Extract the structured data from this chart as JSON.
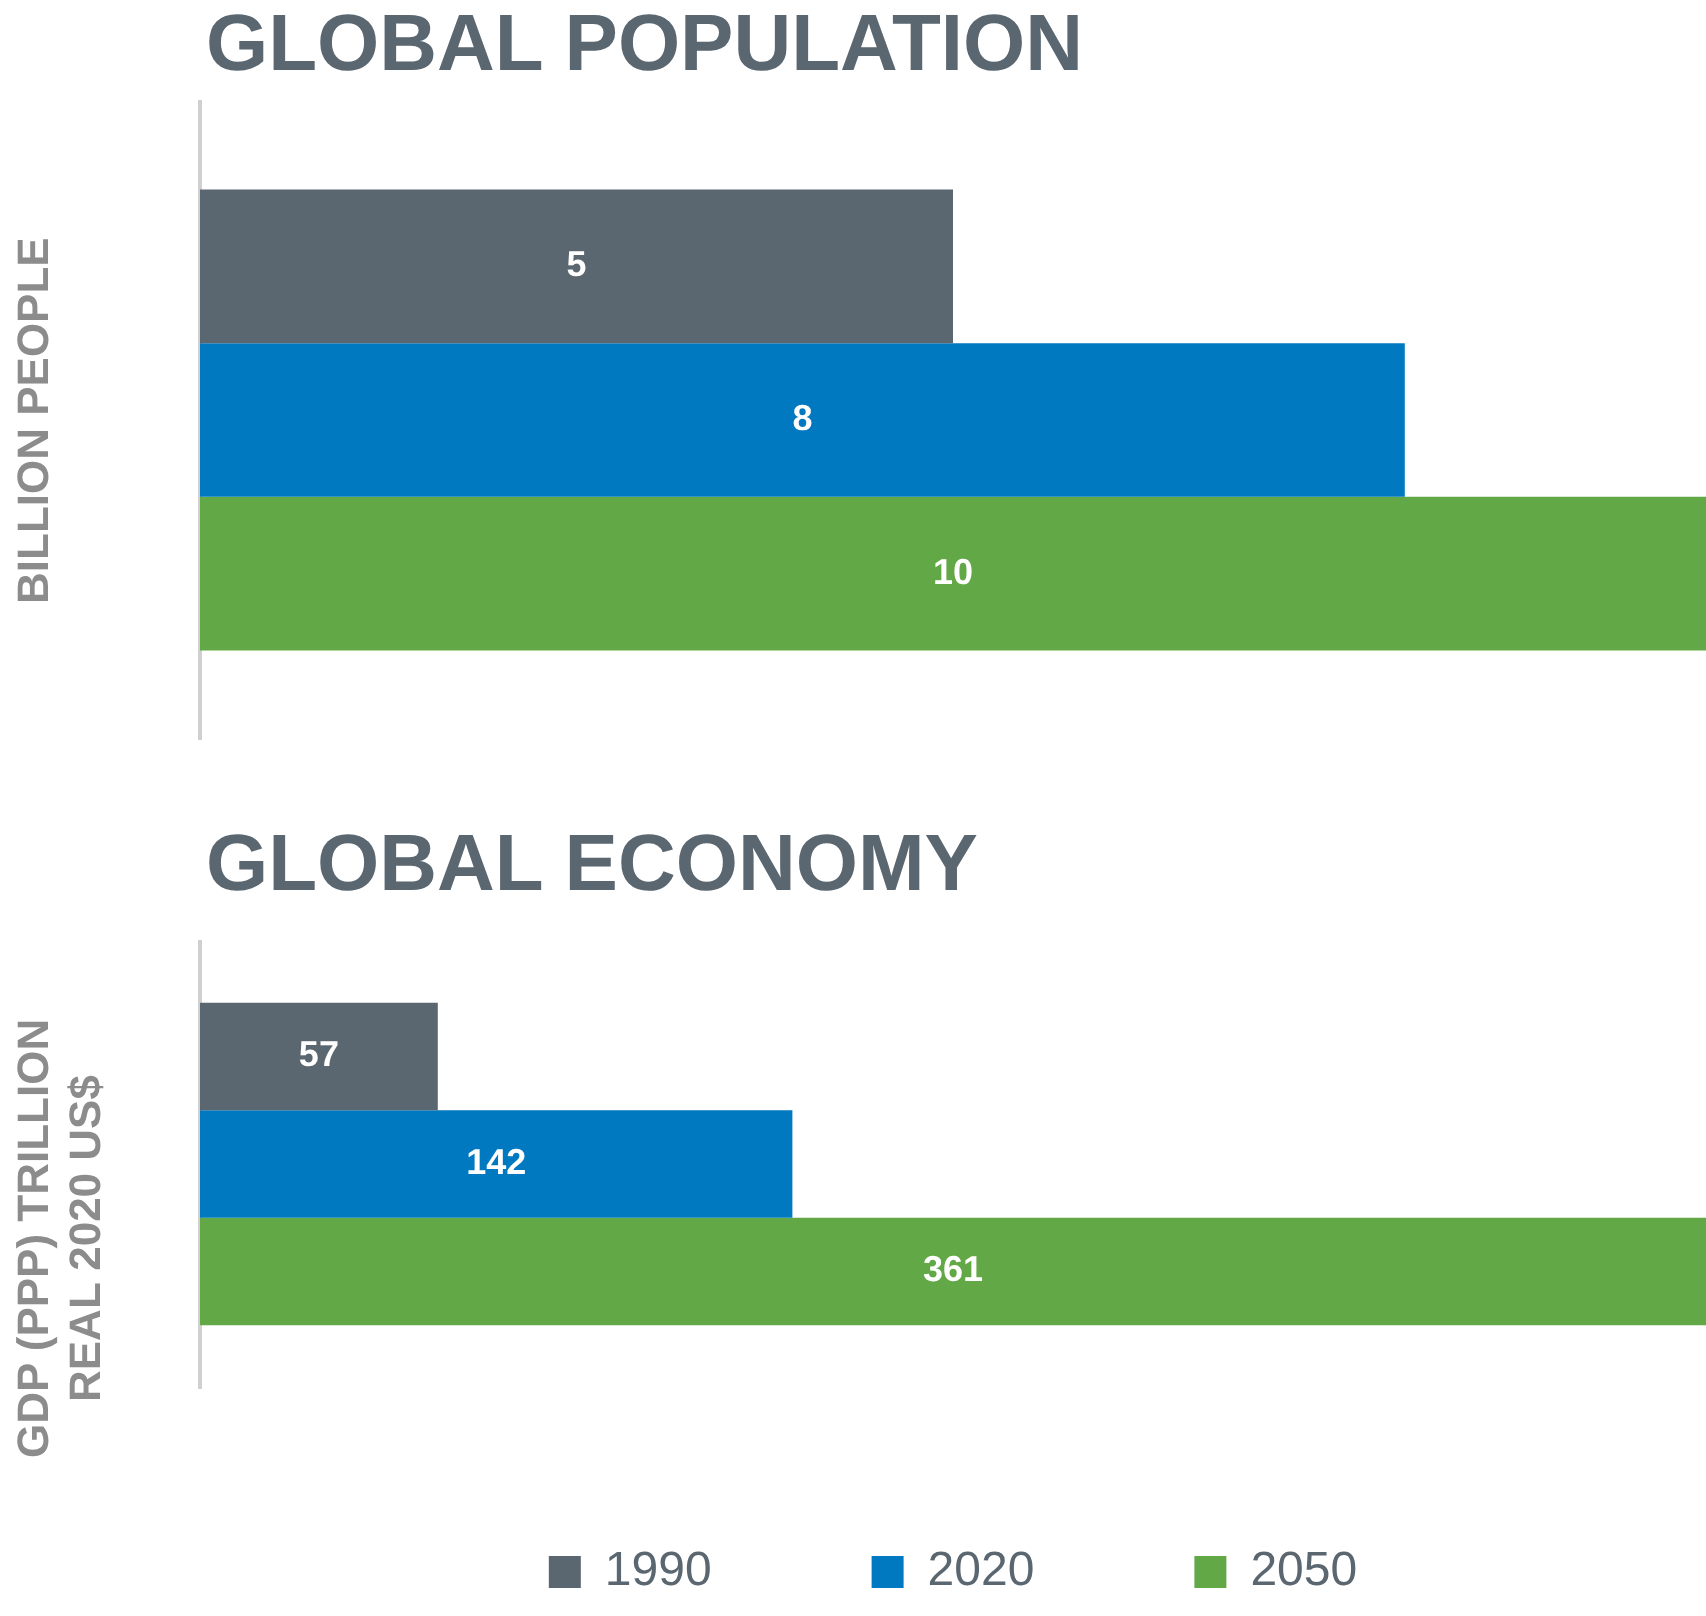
{
  "chart_data": [
    {
      "type": "bar",
      "orientation": "horizontal",
      "title": "GLOBAL POPULATION",
      "ylabel": "BILLION PEOPLE",
      "categories": [
        null
      ],
      "data_labels": true,
      "legend": false,
      "series": [
        {
          "color": "#5b6770",
          "values": [
            5
          ]
        },
        {
          "color": "#0079c1",
          "values": [
            8
          ]
        },
        {
          "color": "#62a846",
          "values": [
            10
          ]
        }
      ]
    },
    {
      "type": "bar",
      "orientation": "horizontal",
      "title": "GLOBAL ECONOMY",
      "ylabel": "GDP (PPP) TRILLION REAL 2020 US$",
      "categories": [
        null
      ],
      "data_labels": true,
      "legend": "bottom",
      "series": [
        {
          "name": "1990",
          "color": "#5b6770",
          "values": [
            57
          ]
        },
        {
          "name": "2020",
          "color": "#0079c1",
          "values": [
            142
          ]
        },
        {
          "name": "2050",
          "color": "#62a846",
          "values": [
            361
          ]
        }
      ]
    }
  ]
}
